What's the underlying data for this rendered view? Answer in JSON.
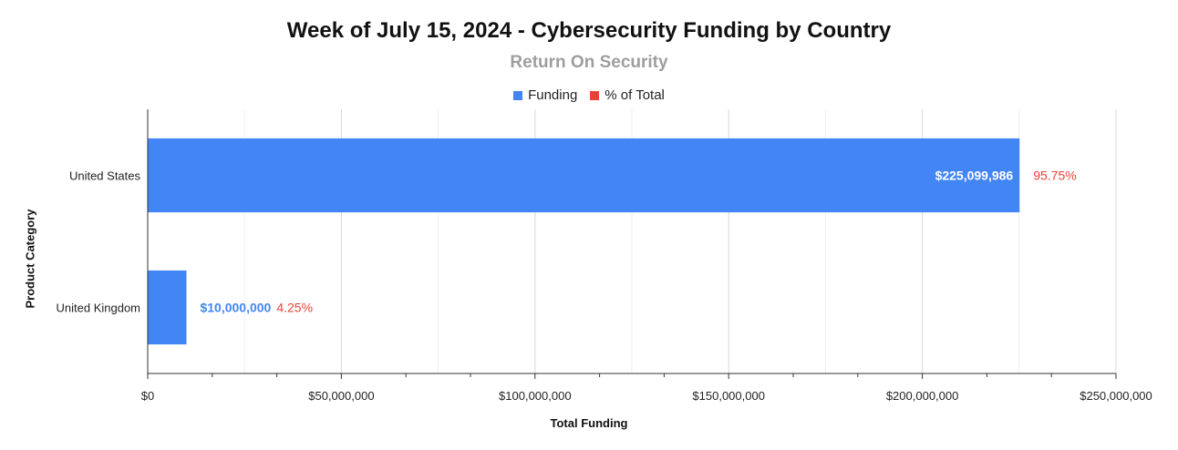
{
  "chart_data": {
    "type": "bar",
    "orientation": "horizontal",
    "title": "Week of July 15, 2024 - Cybersecurity Funding by Country",
    "subtitle": "Return On Security",
    "xlabel": "Total Funding",
    "ylabel": "Product Category",
    "categories": [
      "United States",
      "United Kingdom"
    ],
    "series": [
      {
        "name": "Funding",
        "color": "#4285f4",
        "values": [
          225099986,
          10000000
        ],
        "value_labels": [
          "$225,099,986",
          "$10,000,000"
        ]
      },
      {
        "name": "% of Total",
        "color": "#ea4335",
        "values": [
          95.75,
          4.25
        ],
        "value_labels": [
          "95.75%",
          "4.25%"
        ]
      }
    ],
    "xlim": [
      0,
      250000000
    ],
    "x_ticks": [
      0,
      50000000,
      100000000,
      150000000,
      200000000,
      250000000
    ],
    "x_tick_labels": [
      "$0",
      "$50,000,000",
      "$100,000,000",
      "$150,000,000",
      "$200,000,000",
      "$250,000,000"
    ],
    "grid": true,
    "legend_position": "top"
  }
}
